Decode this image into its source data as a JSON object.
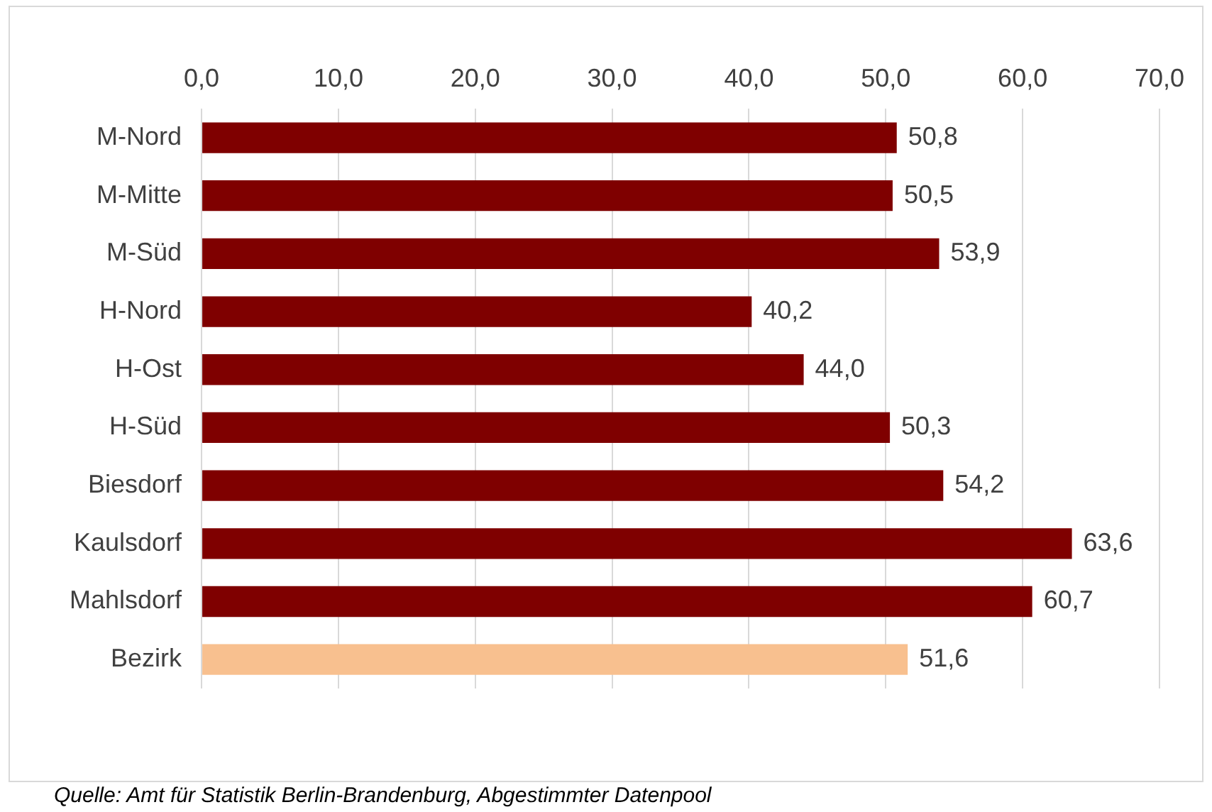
{
  "chart_data": {
    "type": "bar",
    "orientation": "horizontal",
    "categories": [
      "M-Nord",
      "M-Mitte",
      "M-Süd",
      "H-Nord",
      "H-Ost",
      "H-Süd",
      "Biesdorf",
      "Kaulsdorf",
      "Mahlsdorf",
      "Bezirk"
    ],
    "values": [
      50.8,
      50.5,
      53.9,
      40.2,
      44.0,
      50.3,
      54.2,
      63.6,
      60.7,
      51.6
    ],
    "colors": [
      "#7f0000",
      "#7f0000",
      "#7f0000",
      "#7f0000",
      "#7f0000",
      "#7f0000",
      "#7f0000",
      "#7f0000",
      "#7f0000",
      "#f8c08f"
    ],
    "value_labels": [
      "50,8",
      "50,5",
      "53,9",
      "40,2",
      "44,0",
      "50,3",
      "54,2",
      "63,6",
      "60,7",
      "51,6"
    ],
    "xlim": [
      0,
      70
    ],
    "xticks": [
      {
        "value": 0,
        "label": "0,0"
      },
      {
        "value": 10,
        "label": "10,0"
      },
      {
        "value": 20,
        "label": "20,0"
      },
      {
        "value": 30,
        "label": "30,0"
      },
      {
        "value": 40,
        "label": "40,0"
      },
      {
        "value": 50,
        "label": "50,0"
      },
      {
        "value": 60,
        "label": "60,0"
      },
      {
        "value": 70,
        "label": "70,0"
      }
    ],
    "grid": "x",
    "legend": false,
    "annotations": [
      "Quelle: Amt für Statistik Berlin-Brandenburg, Abgestimmter Datenpool"
    ]
  }
}
